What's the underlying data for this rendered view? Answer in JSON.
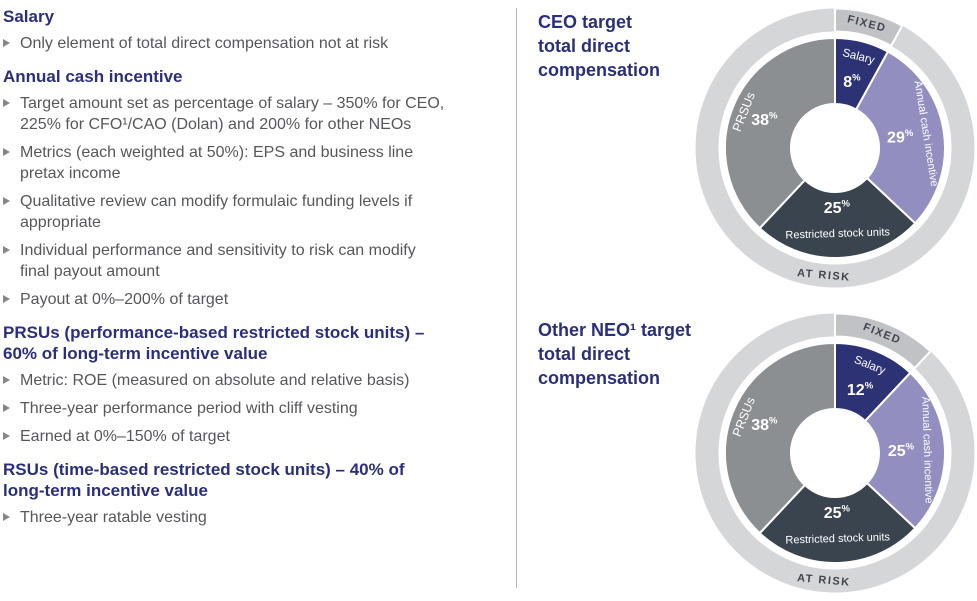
{
  "left_panel": {
    "sections": [
      {
        "heading": "Salary",
        "bullets": [
          "Only element of total direct compensation not at risk"
        ]
      },
      {
        "heading": "Annual cash incentive",
        "bullets": [
          "Target amount set as percentage of salary – 350% for CEO, 225% for CFO¹/CAO (Dolan) and 200% for other NEOs",
          "Metrics (each weighted at 50%): EPS and business line pretax income",
          "Qualitative review can modify formulaic funding levels if appropriate",
          "Individual performance and sensitivity to risk can modify final payout amount",
          "Payout at 0%–200% of target"
        ]
      },
      {
        "heading": "PRSUs (performance-based restricted stock units) – 60% of long-term incentive value",
        "bullets": [
          "Metric: ROE (measured on absolute and relative basis)",
          "Three-year performance period with cliff vesting",
          "Earned at 0%–150% of target"
        ]
      },
      {
        "heading": "RSUs (time-based restricted stock units) – 40% of long-term incentive value",
        "bullets": [
          "Three-year ratable vesting"
        ]
      }
    ]
  },
  "chart_data": [
    {
      "type": "pie",
      "variant": "donut",
      "title": "CEO target total direct compensation",
      "percent_suffix": "%",
      "ring_labels": {
        "fixed": "FIXED",
        "at_risk": "AT RISK"
      },
      "colors": {
        "ring": "#d5d6d8",
        "fixed_arc": "#c0c2c5",
        "ring_label": "#3f4650"
      },
      "segments": [
        {
          "label": "Salary",
          "value": 8,
          "color": "#2c3274",
          "group": "fixed"
        },
        {
          "label": "Annual cash incentive",
          "value": 29,
          "color": "#928ec0",
          "group": "at_risk"
        },
        {
          "label": "Restricted stock units",
          "value": 25,
          "color": "#3a444e",
          "group": "at_risk"
        },
        {
          "label": "PRSUs",
          "value": 38,
          "color": "#8c8f92",
          "group": "at_risk"
        }
      ]
    },
    {
      "type": "pie",
      "variant": "donut",
      "title": "Other NEO¹ target total direct compensation",
      "percent_suffix": "%",
      "ring_labels": {
        "fixed": "FIXED",
        "at_risk": "AT RISK"
      },
      "colors": {
        "ring": "#d5d6d8",
        "fixed_arc": "#c0c2c5",
        "ring_label": "#3f4650"
      },
      "segments": [
        {
          "label": "Salary",
          "value": 12,
          "color": "#2c3274",
          "group": "fixed"
        },
        {
          "label": "Annual cash incentive",
          "value": 25,
          "color": "#928ec0",
          "group": "at_risk"
        },
        {
          "label": "Restricted stock units",
          "value": 25,
          "color": "#3a444e",
          "group": "at_risk"
        },
        {
          "label": "PRSUs",
          "value": 38,
          "color": "#8c8f92",
          "group": "at_risk"
        }
      ]
    }
  ]
}
